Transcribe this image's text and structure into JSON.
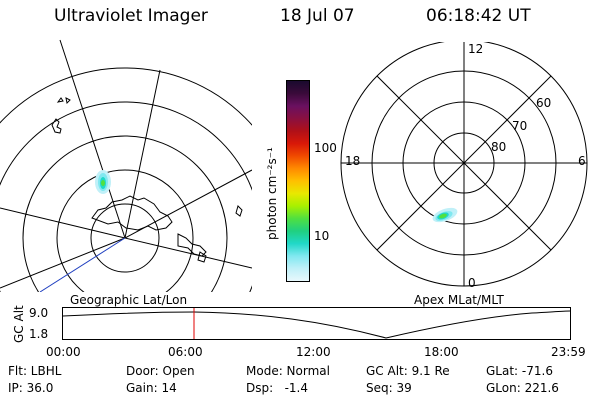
{
  "header": {
    "instrument": "Ultraviolet Imager",
    "date": "18 Jul 07",
    "time": "06:18:42 UT"
  },
  "colorbar": {
    "unit_label": "photon cm⁻²s⁻¹",
    "tick_labels": [
      "100",
      "10"
    ],
    "colors": [
      "#1a0a2e",
      "#3a0a3a",
      "#6a1060",
      "#8a1040",
      "#b01018",
      "#d81808",
      "#f04a00",
      "#ff8a00",
      "#ffc000",
      "#e8e800",
      "#a8f000",
      "#50e040",
      "#20d080",
      "#20d8c8",
      "#80e8f0",
      "#c0f0f8",
      "#e8f8fc"
    ]
  },
  "left_panel": {
    "caption": "Geographic Lat/Lon"
  },
  "right_panel": {
    "caption": "Apex MLat/MLT",
    "mlt_labels": {
      "top": "12",
      "left": "18",
      "right": "6",
      "bottom": "0"
    },
    "lat_labels": [
      "60",
      "70",
      "80"
    ]
  },
  "altitude_plot": {
    "ylabel": "GC Alt",
    "y_ticks": [
      "9.0",
      "1.8"
    ],
    "x_ticks": [
      "00:00",
      "06:00",
      "12:00",
      "18:00",
      "23:59"
    ],
    "current_time_marker": "06:18"
  },
  "info": {
    "flt": "Flt: LBHL",
    "ip": "IP: 36.0",
    "door": "Door: Open",
    "gain": "Gain: 14",
    "mode": "Mode: Normal",
    "dsp": "Dsp:   -1.4",
    "gc_alt": "GC Alt: 9.1 Re",
    "seq": "Seq: 39",
    "glat": "GLat: -71.6",
    "glon": "GLon: 221.6"
  }
}
